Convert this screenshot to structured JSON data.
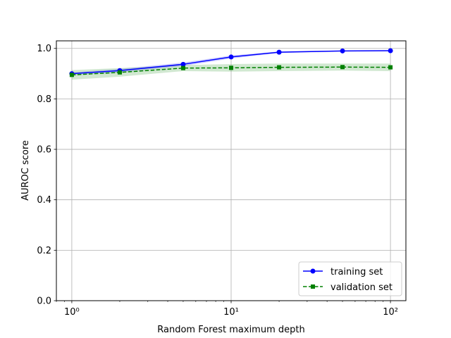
{
  "chart_data": {
    "type": "line",
    "xscale": "log",
    "xlabel": "Random Forest maximum depth",
    "ylabel": "AUROC score",
    "xlim": [
      0.8,
      125
    ],
    "ylim": [
      0.0,
      1.03
    ],
    "grid": true,
    "legend_position": "lower-right",
    "x": [
      1,
      2,
      5,
      10,
      20,
      50,
      100
    ],
    "series": [
      {
        "name": "training set",
        "values": [
          0.9,
          0.912,
          0.937,
          0.966,
          0.985,
          0.99,
          0.991
        ],
        "band_lower": [
          0.895,
          0.905,
          0.93,
          0.96,
          0.982,
          0.988,
          0.989
        ],
        "band_upper": [
          0.905,
          0.919,
          0.944,
          0.972,
          0.988,
          0.992,
          0.993
        ],
        "color": "#0000ff",
        "line_style": "solid",
        "marker": "circle"
      },
      {
        "name": "validation set",
        "values": [
          0.895,
          0.905,
          0.922,
          0.923,
          0.925,
          0.926,
          0.925
        ],
        "band_lower": [
          0.876,
          0.888,
          0.91,
          0.908,
          0.91,
          0.912,
          0.91
        ],
        "band_upper": [
          0.914,
          0.922,
          0.934,
          0.938,
          0.94,
          0.94,
          0.94
        ],
        "color": "#008000",
        "line_style": "dashed",
        "marker": "square"
      }
    ],
    "x_ticks": [
      {
        "value": 1,
        "label": "10⁰"
      },
      {
        "value": 10,
        "label": "10¹"
      },
      {
        "value": 100,
        "label": "10²"
      }
    ],
    "y_ticks": [
      {
        "value": 0.0,
        "label": "0.0"
      },
      {
        "value": 0.2,
        "label": "0.2"
      },
      {
        "value": 0.4,
        "label": "0.4"
      },
      {
        "value": 0.6,
        "label": "0.6"
      },
      {
        "value": 0.8,
        "label": "0.8"
      },
      {
        "value": 1.0,
        "label": "1.0"
      }
    ]
  }
}
